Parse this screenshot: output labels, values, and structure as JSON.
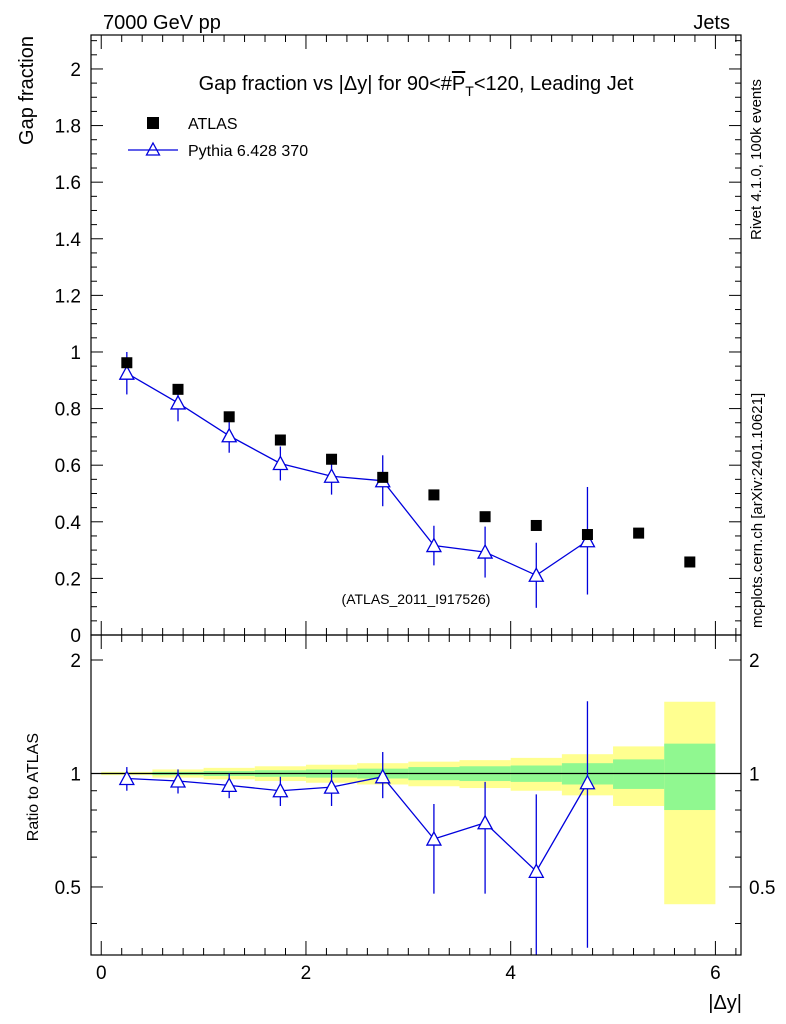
{
  "header": {
    "left": "7000 GeV pp",
    "right": "Jets"
  },
  "side_labels": {
    "rivet": "Rivet 4.1.0,  100k events",
    "mcplots": "mcplots.cern.ch [arXiv:2401.10621]"
  },
  "colors": {
    "mc": "#0000dd",
    "band_green": "#90f890",
    "band_yellow": "#ffff90",
    "data": "#000000"
  },
  "chart_data": [
    {
      "type": "scatter",
      "title_prefix": "Gap fraction vs |Δy| for 90<#",
      "title_p": "P",
      "title_sub": "T",
      "title_suffix": "<120, Leading Jet",
      "xlabel": "|Δy|",
      "ylabel": "Gap fraction",
      "xlim": [
        -0.1,
        6.25
      ],
      "ylim": [
        0,
        2.12
      ],
      "yticks": [
        0,
        0.2,
        0.4,
        0.6,
        0.8,
        1,
        1.2,
        1.4,
        1.6,
        1.8,
        2
      ],
      "ytick_labels": [
        "0",
        "0.2",
        "0.4",
        "0.6",
        "0.8",
        "1",
        "1.2",
        "1.4",
        "1.6",
        "1.8",
        "2"
      ],
      "watermark": "(ATLAS_2011_I917526)",
      "legend": {
        "position": "top-left",
        "data_label": "ATLAS",
        "mc_label": "Pythia 6.428 370"
      },
      "series": [
        {
          "name": "ATLAS",
          "x": [
            0.25,
            0.75,
            1.25,
            1.75,
            2.25,
            2.75,
            3.25,
            3.75,
            4.25,
            4.75,
            5.25,
            5.75
          ],
          "y": [
            0.962,
            0.868,
            0.771,
            0.689,
            0.621,
            0.557,
            0.495,
            0.418,
            0.387,
            0.355,
            0.36,
            0.258
          ]
        },
        {
          "name": "Pythia 6.428 370",
          "x": [
            0.25,
            0.75,
            1.25,
            1.75,
            2.25,
            2.75,
            3.25,
            3.75,
            4.25,
            4.75
          ],
          "y": [
            0.925,
            0.82,
            0.704,
            0.606,
            0.561,
            0.545,
            0.316,
            0.293,
            0.211,
            0.333
          ],
          "err_low": [
            0.075,
            0.065,
            0.06,
            0.06,
            0.065,
            0.09,
            0.07,
            0.09,
            0.115,
            0.19
          ],
          "err_high": [
            0.075,
            0.065,
            0.06,
            0.06,
            0.065,
            0.09,
            0.07,
            0.09,
            0.115,
            0.19
          ]
        }
      ]
    },
    {
      "type": "scatter",
      "subtype": "ratio",
      "xlabel": "|Δy|",
      "ylabel": "Ratio to ATLAS",
      "xlim": [
        -0.1,
        6.25
      ],
      "ylim": [
        0.33,
        2.33
      ],
      "yticks": [
        0.5,
        1,
        2
      ],
      "ytick_labels": [
        "0.5",
        "1",
        "2"
      ],
      "xticks": [
        0,
        2,
        4,
        6
      ],
      "xtick_labels": [
        "0",
        "2",
        "4",
        "6"
      ],
      "bands": {
        "bin_edges": [
          0,
          0.5,
          1,
          1.5,
          2,
          2.5,
          3,
          3.5,
          4,
          4.5,
          5,
          5.5,
          6
        ],
        "green_half_width": [
          0.004,
          0.01,
          0.015,
          0.02,
          0.025,
          0.03,
          0.04,
          0.045,
          0.05,
          0.065,
          0.09,
          0.2
        ],
        "yellow_half_width": [
          0.01,
          0.025,
          0.035,
          0.045,
          0.055,
          0.065,
          0.075,
          0.085,
          0.1,
          0.125,
          0.18,
          0.55
        ]
      },
      "series": [
        {
          "name": "Pythia 6.428 370 / ATLAS",
          "x": [
            0.25,
            0.75,
            1.25,
            1.75,
            2.25,
            2.75,
            3.25,
            3.75,
            4.25,
            4.75
          ],
          "y": [
            0.97,
            0.955,
            0.93,
            0.9,
            0.92,
            0.98,
            0.67,
            0.74,
            0.55,
            0.945
          ],
          "err_low": [
            0.07,
            0.07,
            0.07,
            0.08,
            0.1,
            0.12,
            0.19,
            0.26,
            0.3,
            0.6
          ],
          "err_high": [
            0.07,
            0.07,
            0.07,
            0.08,
            0.1,
            0.16,
            0.16,
            0.21,
            0.33,
            0.61
          ]
        }
      ]
    }
  ]
}
